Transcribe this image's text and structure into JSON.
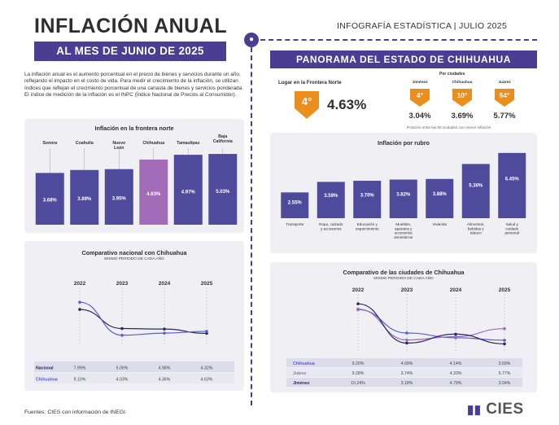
{
  "header": {
    "title": "INFLACIÓN ANUAL",
    "subtitle": "AL MES DE JUNIO DE 2025",
    "right": "INFOGRAFÍA ESTADÍSTICA | JULIO 2025"
  },
  "intro": "La inflación anual es el aumento porcentual en el precio de bienes y servicios durante un año, reflejando el impacto en el costo de vida. Para medir el crecimiento de la inflación, se utilizan índices que reflejan el crecimiento porcentual de una canasta de bienes y servicios ponderada. El índice de medición de la inflación es el INPC (Índice Nacional de Precios al Consumidor).",
  "right_title": "PANORAMA DEL ESTADO DE CHIHUAHUA",
  "frontera": {
    "label": "Lugar en la Frontera Norte",
    "rank": "4°",
    "value": "4.63%"
  },
  "cities": {
    "title": "Por ciudades",
    "items": [
      {
        "name": "Jiménez",
        "rank": "4°",
        "value": "3.04%"
      },
      {
        "name": "Chihuahua",
        "rank": "10°",
        "value": "3.69%"
      },
      {
        "name": "Juárez",
        "rank": "54°",
        "value": "5.77%"
      }
    ],
    "note": "Posición entre las 55 ciudades con menor inflación"
  },
  "footer": "Fuentes: CIES con información de INEGI.",
  "logo": "CIES",
  "colors": {
    "purple": "#4a3d93",
    "bar": "#4e4a9c",
    "highlight": "#a36cb8",
    "orange": "#ea8f1d",
    "panel": "#efeff4"
  },
  "chart_data": [
    {
      "type": "bar",
      "title": "Inflación en la frontera norte",
      "categories": [
        "Sonora",
        "Coahuila",
        "Nuevo León",
        "Chihuahua",
        "Tamaulipas",
        "Baja California"
      ],
      "values": [
        3.68,
        3.89,
        3.95,
        4.63,
        4.97,
        5.03
      ],
      "labels": [
        "3.68%",
        "3.89%",
        "3.95%",
        "4.63%",
        "4.97%",
        "5.03%"
      ],
      "highlight": "Chihuahua",
      "ylim": [
        0,
        5.5
      ]
    },
    {
      "type": "bar",
      "title": "Inflación por rubro",
      "categories": [
        "Transporte",
        "Ropa, calzado y accesorios",
        "Educación y esparcimiento",
        "Muebles, aparatos y accesorios domésticos",
        "Vivienda",
        "Alimentos, bebidas y tabaco",
        "Salud y cuidado personal"
      ],
      "values": [
        2.55,
        3.59,
        3.7,
        3.82,
        3.88,
        5.36,
        6.45
      ],
      "labels": [
        "2.55%",
        "3.59%",
        "3.70%",
        "3.82%",
        "3.88%",
        "5.36%",
        "6.45%"
      ],
      "ylim": [
        0,
        6.6
      ]
    },
    {
      "type": "line",
      "title": "Comparativo nacional con Chihuahua",
      "subtitle": "MISMO PERIODO DE CADA AÑO",
      "x": [
        "2022",
        "2023",
        "2024",
        "2025"
      ],
      "ylim": [
        3.0,
        10.5
      ],
      "series": [
        {
          "name": "Nacional",
          "values": [
            7.99,
            5.06,
            4.98,
            4.32
          ],
          "labels": [
            "7.99%",
            "5.06%",
            "4.98%",
            "4.32%"
          ],
          "color": "#2e2a5e"
        },
        {
          "name": "Chihuahua",
          "values": [
            9.1,
            4.03,
            4.36,
            4.63
          ],
          "labels": [
            "9.10%",
            "4.03%",
            "4.36%",
            "4.63%"
          ],
          "color": "#5b5bd6"
        }
      ]
    },
    {
      "type": "line",
      "title": "Comparativo de las ciudades de Chihuahua",
      "subtitle": "MISMO PERIODO DE CADA AÑO",
      "x": [
        "2022",
        "2023",
        "2024",
        "2025"
      ],
      "ylim": [
        2.5,
        11.0
      ],
      "series": [
        {
          "name": "Chihuahua",
          "values": [
            9.2,
            4.99,
            4.14,
            3.69
          ],
          "labels": [
            "9.20%",
            "4.99%",
            "4.14%",
            "3.69%"
          ],
          "color": "#5b5bd6"
        },
        {
          "name": "Juárez",
          "values": [
            9.28,
            3.74,
            4.33,
            5.77
          ],
          "labels": [
            "9.28%",
            "3.74%",
            "4.33%",
            "5.77%"
          ],
          "color": "#9c6cc0"
        },
        {
          "name": "Jiménez",
          "values": [
            10.24,
            3.18,
            4.79,
            3.04
          ],
          "labels": [
            "10.24%",
            "3.18%",
            "4.79%",
            "3.04%"
          ],
          "color": "#2e2a5e"
        }
      ]
    }
  ]
}
